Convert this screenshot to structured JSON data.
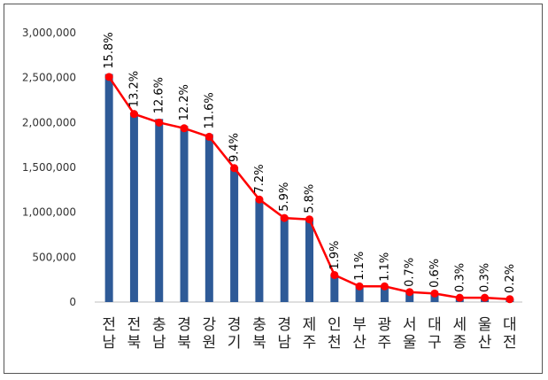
{
  "chart_data": {
    "type": "bar",
    "title": "",
    "xlabel": "",
    "ylabel": "",
    "ylim": [
      0,
      3000000
    ],
    "y_ticks": [
      "3,000,000",
      "2,500,000",
      "2,000,000",
      "1,500,000",
      "1,000,000",
      "500,000",
      "0"
    ],
    "y_tick_values": [
      3000000,
      2500000,
      2000000,
      1500000,
      1000000,
      500000,
      0
    ],
    "grid": false,
    "legend": "none",
    "categories": [
      [
        "전",
        "남"
      ],
      [
        "전",
        "북"
      ],
      [
        "충",
        "남"
      ],
      [
        "경",
        "북"
      ],
      [
        "강",
        "원"
      ],
      [
        "경",
        "기"
      ],
      [
        "충",
        "북"
      ],
      [
        "경",
        "남"
      ],
      [
        "제",
        "주"
      ],
      [
        "인",
        "천"
      ],
      [
        "부",
        "산"
      ],
      [
        "광",
        "주"
      ],
      [
        "서",
        "울"
      ],
      [
        "대",
        "구"
      ],
      [
        "세",
        "종"
      ],
      [
        "울",
        "산"
      ],
      [
        "대",
        "전"
      ]
    ],
    "series": [
      {
        "type": "bar",
        "color": "#2E5A97",
        "values": [
          2540000,
          2110000,
          2040000,
          1960000,
          1870000,
          1500000,
          1150000,
          950000,
          930000,
          300000,
          180000,
          170000,
          110000,
          100000,
          50000,
          50000,
          40000
        ]
      },
      {
        "type": "line",
        "color": "#FF0000",
        "values": [
          15.8,
          13.2,
          12.6,
          12.2,
          11.6,
          9.4,
          7.2,
          5.9,
          5.8,
          1.9,
          1.1,
          1.1,
          0.7,
          0.6,
          0.3,
          0.3,
          0.2
        ],
        "labels": [
          "15.8%",
          "13.2%",
          "12.6%",
          "12.2%",
          "11.6%",
          "9.4%",
          "7.2%",
          "5.9%",
          "5.8%",
          "1.9%",
          "1.1%",
          "1.1%",
          "0.7%",
          "0.6%",
          "0.3%",
          "0.3%",
          "0.2%"
        ]
      }
    ]
  }
}
